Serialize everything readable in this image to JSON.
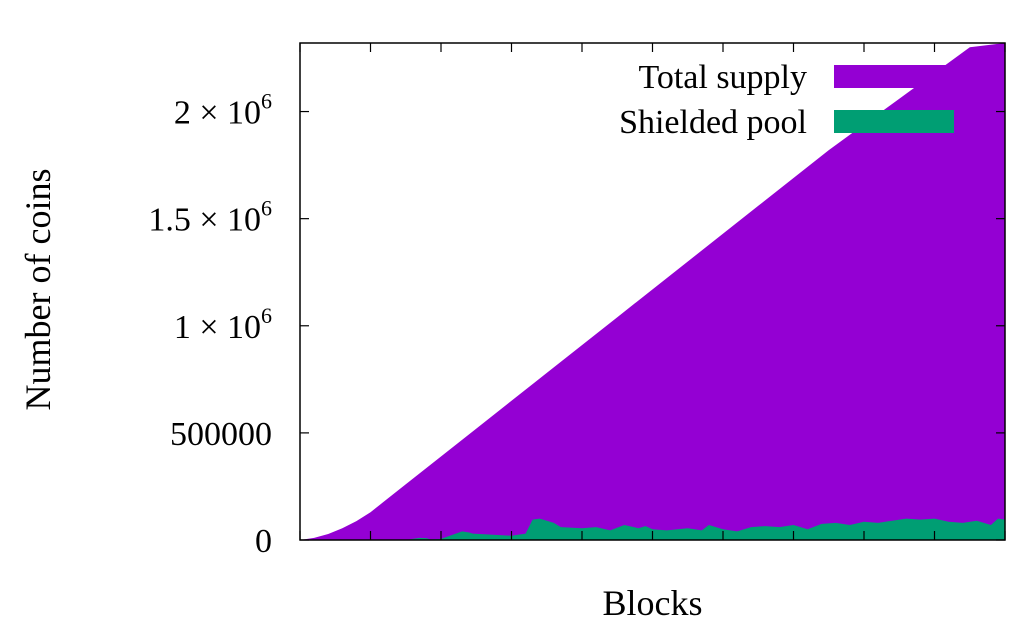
{
  "chart_data": {
    "type": "area",
    "title": "",
    "xlabel": "Blocks",
    "ylabel": "Number of coins",
    "x_tick_labels_shown": false,
    "xlim": [
      0,
      1
    ],
    "ylim": [
      0,
      2320000
    ],
    "y_ticks": [
      {
        "value": 0,
        "label": "0"
      },
      {
        "value": 500000,
        "label": "500000"
      },
      {
        "value": 1000000,
        "label": "1 × 10",
        "exp": "6"
      },
      {
        "value": 1500000,
        "label": "1.5 × 10",
        "exp": "6"
      },
      {
        "value": 2000000,
        "label": "2 × 10",
        "exp": "6"
      }
    ],
    "grid": false,
    "legend_position": "top-right",
    "series": [
      {
        "name": "Total supply",
        "color": "#9400D3",
        "x": [
          0,
          0.02,
          0.04,
          0.06,
          0.08,
          0.1,
          0.15,
          0.25,
          0.35,
          0.45,
          0.55,
          0.65,
          0.75,
          0.85,
          0.95,
          1.0
        ],
        "y": [
          0,
          10000,
          28000,
          55000,
          88000,
          130000,
          260000,
          520000,
          780000,
          1040000,
          1300000,
          1560000,
          1820000,
          2060000,
          2300000,
          2320000
        ]
      },
      {
        "name": "Shielded pool",
        "color": "#009E73",
        "x": [
          0,
          0.15,
          0.16,
          0.17,
          0.18,
          0.185,
          0.2,
          0.23,
          0.24,
          0.245,
          0.3,
          0.32,
          0.33,
          0.34,
          0.35,
          0.36,
          0.37,
          0.4,
          0.42,
          0.44,
          0.46,
          0.48,
          0.49,
          0.5,
          0.52,
          0.55,
          0.57,
          0.58,
          0.6,
          0.62,
          0.64,
          0.66,
          0.68,
          0.7,
          0.72,
          0.74,
          0.76,
          0.78,
          0.8,
          0.82,
          0.84,
          0.86,
          0.88,
          0.9,
          0.92,
          0.94,
          0.96,
          0.98,
          0.99,
          1.0
        ],
        "y": [
          0,
          0,
          5000,
          10000,
          8000,
          3000,
          5000,
          40000,
          35000,
          30000,
          20000,
          30000,
          95000,
          100000,
          90000,
          80000,
          60000,
          55000,
          60000,
          45000,
          70000,
          55000,
          65000,
          50000,
          45000,
          55000,
          45000,
          70000,
          50000,
          40000,
          60000,
          65000,
          60000,
          70000,
          50000,
          75000,
          80000,
          70000,
          85000,
          80000,
          90000,
          100000,
          95000,
          100000,
          85000,
          80000,
          90000,
          70000,
          100000,
          95000
        ]
      }
    ]
  }
}
